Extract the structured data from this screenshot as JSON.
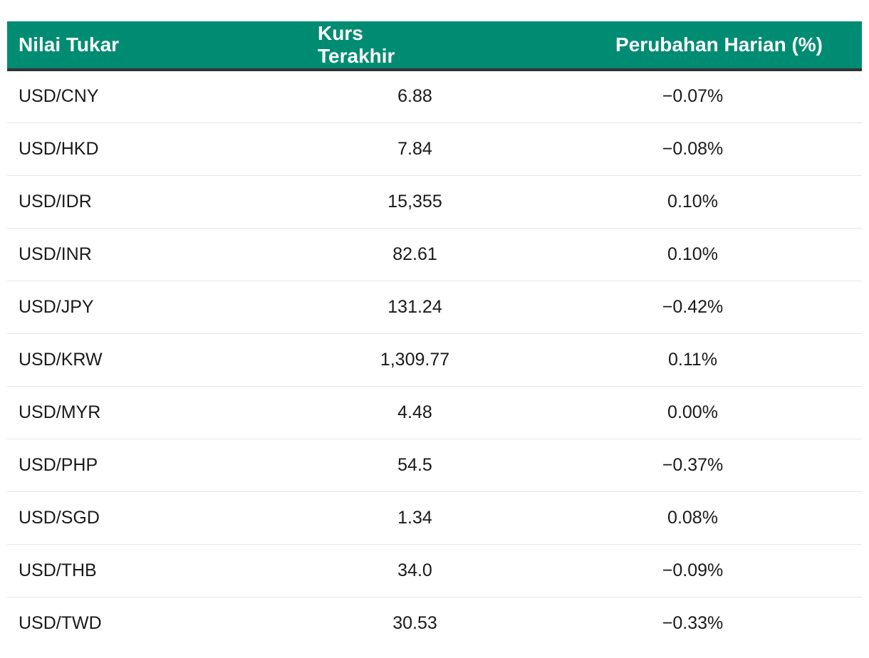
{
  "chart_data": {
    "type": "table",
    "columns": [
      "Nilai Tukar",
      "Kurs Terakhir",
      "Perubahan Harian (%)"
    ],
    "rows": [
      {
        "pair": "USD/CNY",
        "rate": "6.88",
        "change": "−0.07%"
      },
      {
        "pair": "USD/HKD",
        "rate": "7.84",
        "change": "−0.08%"
      },
      {
        "pair": "USD/IDR",
        "rate": "15,355",
        "change": "0.10%"
      },
      {
        "pair": "USD/INR",
        "rate": "82.61",
        "change": "0.10%"
      },
      {
        "pair": "USD/JPY",
        "rate": "131.24",
        "change": "−0.42%"
      },
      {
        "pair": "USD/KRW",
        "rate": "1,309.77",
        "change": "0.11%"
      },
      {
        "pair": "USD/MYR",
        "rate": "4.48",
        "change": "0.00%"
      },
      {
        "pair": "USD/PHP",
        "rate": "54.5",
        "change": "−0.37%"
      },
      {
        "pair": "USD/SGD",
        "rate": "1.34",
        "change": "0.08%"
      },
      {
        "pair": "USD/THB",
        "rate": "34.0",
        "change": "−0.09%"
      },
      {
        "pair": "USD/TWD",
        "rate": "30.53",
        "change": "−0.33%"
      }
    ]
  },
  "colors": {
    "header_bg": "#008c73",
    "header_text": "#ffffff",
    "header_rule": "#333333",
    "row_divider": "#e6e6e6"
  }
}
